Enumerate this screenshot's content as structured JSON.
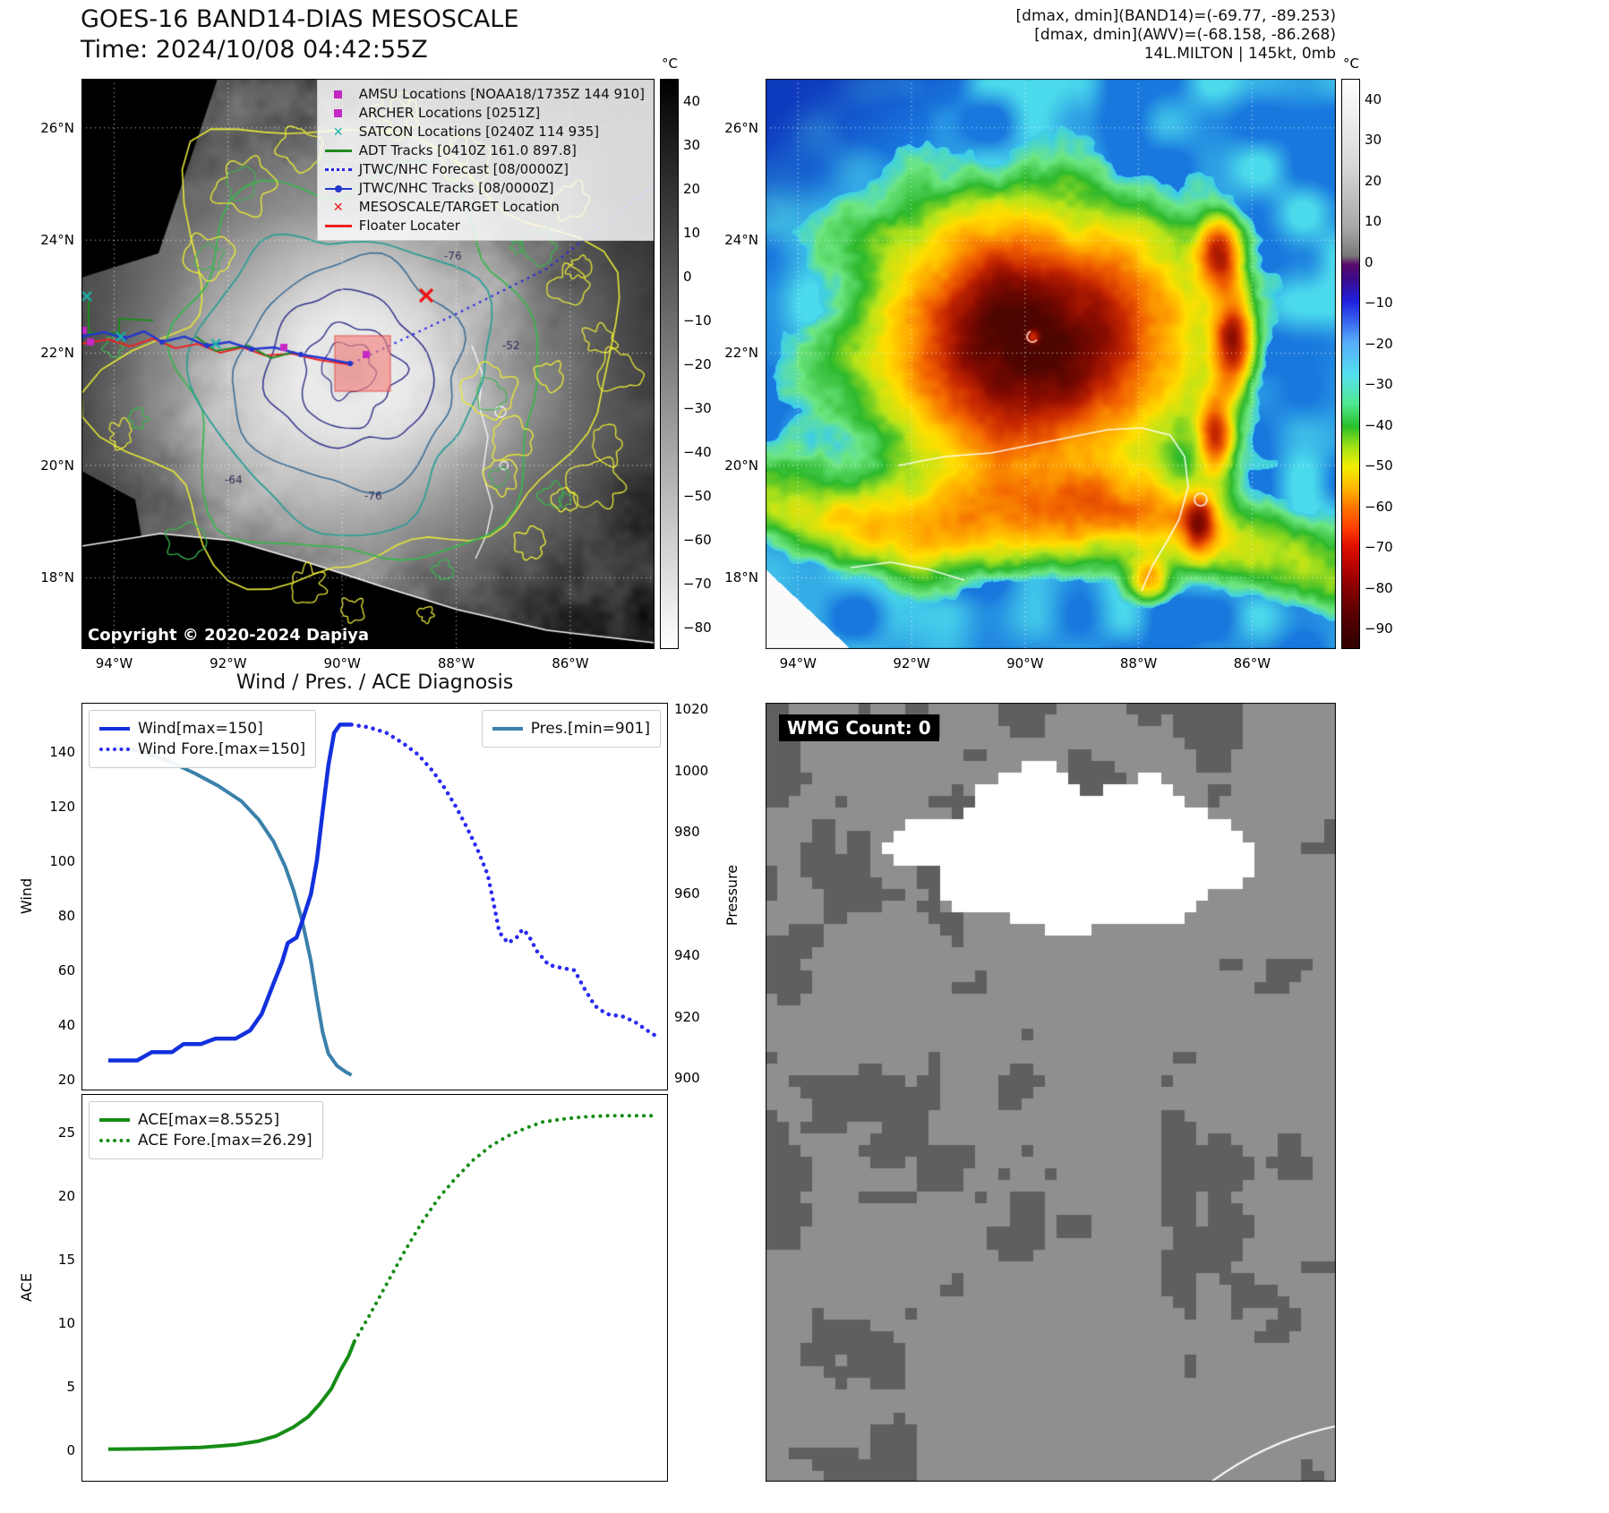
{
  "top_left": {
    "title": "GOES-16 BAND14-DIAS MESOSCALE",
    "time_label": "Time: 2024/10/08 04:42:55Z",
    "copyright": "Copyright © 2020-2024 Dapiya",
    "colorbar_unit": "°C",
    "colorbar_ticks": [
      40,
      30,
      20,
      10,
      0,
      -10,
      -20,
      -30,
      -40,
      -50,
      -60,
      -70,
      -80
    ],
    "lat_ticks": [
      "26°N",
      "24°N",
      "22°N",
      "20°N",
      "18°N"
    ],
    "lon_ticks": [
      "94°W",
      "92°W",
      "90°W",
      "88°W",
      "86°W"
    ],
    "contour_labels": [
      "-76",
      "-64",
      "-76",
      "-52"
    ],
    "legend_items": [
      {
        "label": "AMSU Locations [NOAA18/1735Z 144 910]",
        "marker": "square",
        "color": "#c428c4"
      },
      {
        "label": "ARCHER Locations [0251Z]",
        "marker": "square",
        "color": "#c428c4"
      },
      {
        "label": "SATCON Locations [0240Z 114 935]",
        "marker": "x",
        "color": "#1ab3a8"
      },
      {
        "label": "ADT Tracks [0410Z 161.0 897.8]",
        "marker": "line",
        "color": "#1d8a1d"
      },
      {
        "label": "JTWC/NHC Forecast [08/0000Z]",
        "marker": "dotted",
        "color": "#2525e8"
      },
      {
        "label": "JTWC/NHC Tracks [08/0000Z]",
        "marker": "line-dot",
        "color": "#2336cf"
      },
      {
        "label": "MESOSCALE/TARGET Location",
        "marker": "x",
        "color": "#ee1515"
      },
      {
        "label": "Floater Locater",
        "marker": "line",
        "color": "#ee2222"
      }
    ]
  },
  "top_right": {
    "header_lines": [
      "[dmax, dmin](BAND14)=(-69.77, -89.253)",
      "[dmax, dmin](AWV)=(-68.158, -86.268)",
      "14L.MILTON | 145kt, 0mb"
    ],
    "colorbar_unit": "°C",
    "colorbar_ticks": [
      40,
      30,
      20,
      10,
      0,
      -10,
      -20,
      -30,
      -40,
      -50,
      -60,
      -70,
      -80,
      -90
    ],
    "lat_ticks": [
      "26°N",
      "24°N",
      "22°N",
      "20°N",
      "18°N"
    ],
    "lon_ticks": [
      "94°W",
      "92°W",
      "90°W",
      "88°W",
      "86°W"
    ]
  },
  "bottom_left": {
    "title": "Wind / Pres. / ACE Diagnosis"
  },
  "bottom_right": {
    "wmg_label": "WMG Count: 0"
  },
  "chart_data": {
    "type": "line",
    "title": "Wind / Pres. / ACE Diagnosis",
    "panels": [
      {
        "name": "wind-pressure",
        "y_left": {
          "label": "Wind",
          "ticks": [
            140,
            120,
            100,
            80,
            60,
            40,
            20
          ],
          "range": [
            16,
            158
          ]
        },
        "y_right": {
          "label": "Pressure",
          "ticks": [
            1020,
            1000,
            980,
            960,
            940,
            920,
            900
          ],
          "range": [
            896,
            1022
          ]
        },
        "series": [
          {
            "name": "Pres.[min=901]",
            "axis": "right",
            "style": "solid",
            "color": "#3a80ab",
            "width": 4,
            "points": [
              [
                0.05,
                1008
              ],
              [
                0.1,
                1006
              ],
              [
                0.145,
                1003
              ],
              [
                0.19,
                999
              ],
              [
                0.23,
                995
              ],
              [
                0.27,
                990
              ],
              [
                0.3,
                984
              ],
              [
                0.325,
                977
              ],
              [
                0.345,
                969
              ],
              [
                0.36,
                961
              ],
              [
                0.375,
                951
              ],
              [
                0.39,
                938
              ],
              [
                0.4,
                926
              ],
              [
                0.41,
                915
              ],
              [
                0.42,
                908
              ],
              [
                0.435,
                904
              ],
              [
                0.45,
                902
              ],
              [
                0.46,
                901
              ]
            ]
          },
          {
            "name": "Wind[max=150]",
            "axis": "left",
            "style": "solid",
            "color": "#1330dc",
            "width": 4.5,
            "points": [
              [
                0.04,
                27
              ],
              [
                0.09,
                27
              ],
              [
                0.115,
                30
              ],
              [
                0.15,
                30
              ],
              [
                0.17,
                33
              ],
              [
                0.2,
                33
              ],
              [
                0.225,
                35
              ],
              [
                0.26,
                35
              ],
              [
                0.285,
                38
              ],
              [
                0.305,
                44
              ],
              [
                0.325,
                55
              ],
              [
                0.34,
                63
              ],
              [
                0.35,
                70
              ],
              [
                0.365,
                72
              ],
              [
                0.375,
                78
              ],
              [
                0.39,
                88
              ],
              [
                0.4,
                100
              ],
              [
                0.41,
                118
              ],
              [
                0.42,
                135
              ],
              [
                0.43,
                147
              ],
              [
                0.44,
                150
              ],
              [
                0.46,
                150
              ]
            ]
          },
          {
            "name": "Wind Fore.[max=150]",
            "axis": "left",
            "style": "dotted",
            "color": "#2a2af0",
            "width": 4.5,
            "points": [
              [
                0.46,
                150
              ],
              [
                0.49,
                149
              ],
              [
                0.52,
                147
              ],
              [
                0.55,
                143
              ],
              [
                0.575,
                139
              ],
              [
                0.6,
                133
              ],
              [
                0.62,
                127
              ],
              [
                0.64,
                120
              ],
              [
                0.66,
                112
              ],
              [
                0.68,
                103
              ],
              [
                0.695,
                95
              ],
              [
                0.705,
                85
              ],
              [
                0.715,
                74
              ],
              [
                0.73,
                70
              ],
              [
                0.745,
                72
              ],
              [
                0.755,
                75
              ],
              [
                0.765,
                73
              ],
              [
                0.78,
                67
              ],
              [
                0.8,
                62
              ],
              [
                0.82,
                61
              ],
              [
                0.845,
                60
              ],
              [
                0.86,
                54
              ],
              [
                0.88,
                47
              ],
              [
                0.9,
                44
              ],
              [
                0.93,
                43
              ],
              [
                0.95,
                41
              ],
              [
                0.97,
                38
              ],
              [
                0.985,
                36
              ]
            ]
          }
        ]
      },
      {
        "name": "ace",
        "y_left": {
          "label": "ACE",
          "ticks": [
            25,
            20,
            15,
            10,
            5,
            0
          ],
          "range": [
            -2.5,
            28
          ]
        },
        "series": [
          {
            "name": "ACE[max=8.5525]",
            "axis": "left",
            "style": "solid",
            "color": "#168c16",
            "width": 4,
            "points": [
              [
                0.04,
                0.05
              ],
              [
                0.12,
                0.1
              ],
              [
                0.2,
                0.2
              ],
              [
                0.26,
                0.4
              ],
              [
                0.3,
                0.7
              ],
              [
                0.33,
                1.1
              ],
              [
                0.36,
                1.8
              ],
              [
                0.385,
                2.6
              ],
              [
                0.405,
                3.6
              ],
              [
                0.425,
                4.8
              ],
              [
                0.44,
                6.2
              ],
              [
                0.455,
                7.4
              ],
              [
                0.465,
                8.55
              ]
            ]
          },
          {
            "name": "ACE Fore.[max=26.29]",
            "axis": "left",
            "style": "dotted",
            "color": "#168c16",
            "width": 4,
            "points": [
              [
                0.465,
                8.55
              ],
              [
                0.49,
                10.5
              ],
              [
                0.52,
                13
              ],
              [
                0.55,
                15.5
              ],
              [
                0.58,
                17.8
              ],
              [
                0.61,
                19.8
              ],
              [
                0.64,
                21.4
              ],
              [
                0.67,
                22.8
              ],
              [
                0.7,
                23.9
              ],
              [
                0.73,
                24.7
              ],
              [
                0.76,
                25.3
              ],
              [
                0.79,
                25.8
              ],
              [
                0.82,
                26.0
              ],
              [
                0.86,
                26.2
              ],
              [
                0.9,
                26.29
              ],
              [
                0.95,
                26.29
              ],
              [
                0.985,
                26.29
              ]
            ]
          }
        ]
      }
    ]
  }
}
